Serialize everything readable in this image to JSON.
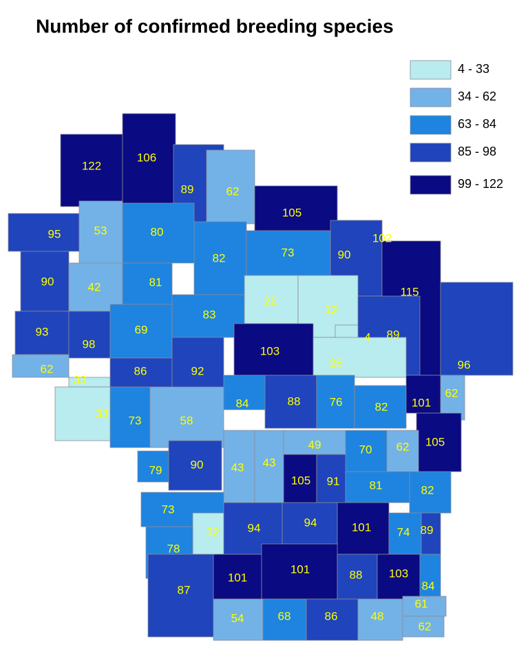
{
  "title": "Number of confirmed breeding species",
  "legend": [
    {
      "label": "4 - 33",
      "color": "#b8ecee"
    },
    {
      "label": "34 - 62",
      "color": "#73b2e6"
    },
    {
      "label": "63 - 84",
      "color": "#1e84e0"
    },
    {
      "label": "85 - 98",
      "color": "#1f44bb"
    },
    {
      "label": "99 - 122",
      "color": "#0a0a82"
    }
  ],
  "values": [
    122,
    106,
    89,
    62,
    105,
    102,
    95,
    53,
    80,
    82,
    73,
    90,
    115,
    90,
    42,
    81,
    83,
    22,
    12,
    93,
    98,
    69,
    103,
    4,
    89,
    96,
    62,
    33,
    86,
    92,
    25,
    33,
    73,
    58,
    84,
    88,
    76,
    82,
    101,
    62,
    105,
    79,
    90,
    43,
    43,
    49,
    70,
    62,
    105,
    91,
    81,
    82,
    73,
    32,
    94,
    94,
    101,
    74,
    89,
    78,
    87,
    101,
    101,
    88,
    103,
    84,
    54,
    68,
    86,
    48,
    61,
    62
  ]
}
